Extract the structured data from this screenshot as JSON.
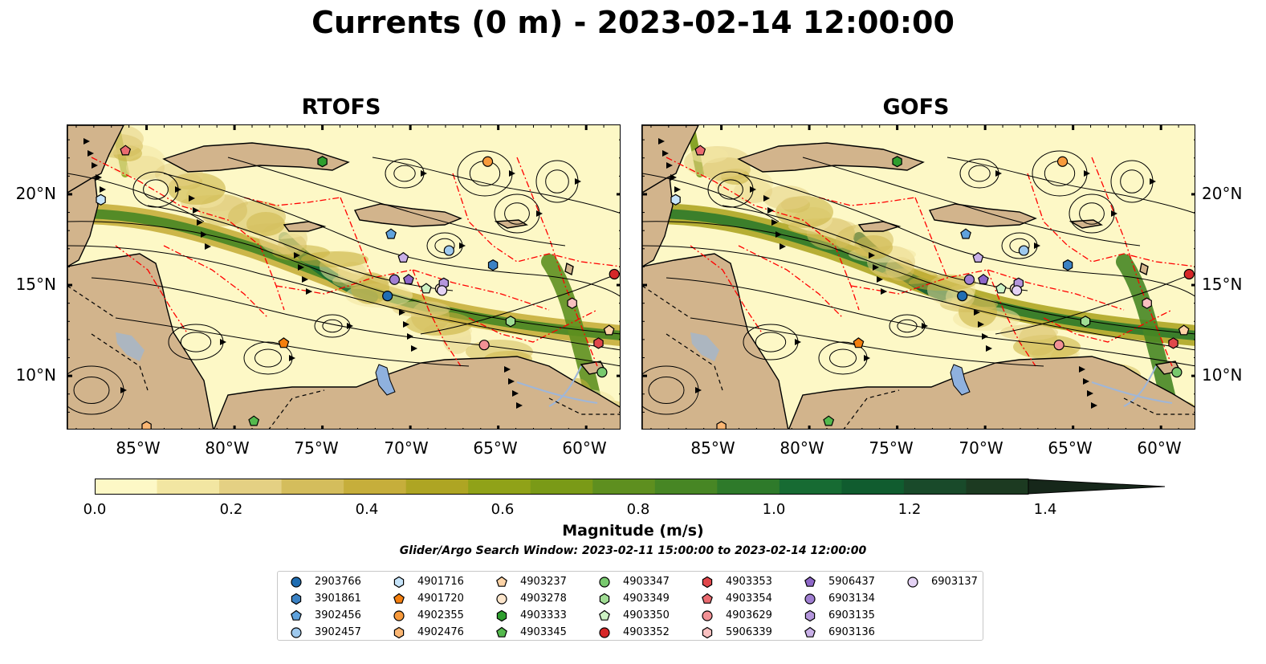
{
  "title": "Currents (0 m) - 2023-02-14 12:00:00",
  "panels": [
    {
      "title": "RTOFS"
    },
    {
      "title": "GOFS"
    }
  ],
  "lat_ticks": [
    "20°N",
    "15°N",
    "10°N"
  ],
  "lon_ticks": [
    "85°W",
    "80°W",
    "75°W",
    "70°W",
    "65°W",
    "60°W"
  ],
  "colorbar": {
    "label": "Magnitude (m/s)",
    "ticks": [
      "0.0",
      "0.2",
      "0.4",
      "0.6",
      "0.8",
      "1.0",
      "1.2",
      "1.4"
    ],
    "min": 0.0,
    "max": 1.5,
    "extend": "max",
    "colors": [
      "#fdf8c6",
      "#f2e6a2",
      "#e4d083",
      "#d4bd5c",
      "#c6ae3b",
      "#aea523",
      "#90a218",
      "#7a9a17",
      "#5e8f1f",
      "#478624",
      "#2e7a2a",
      "#176b33",
      "#105c2f",
      "#194a2a",
      "#1c3a21",
      "#16271a"
    ]
  },
  "search_window": "Glider/Argo Search Window: 2023-02-11 15:00:00 to 2023-02-14 12:00:00",
  "colors": {
    "land": "#d2b48c",
    "lakes": "#8fb1de",
    "rivers": "#9fb6d8",
    "eez_lines": "#ff0000",
    "streamlines": "#000000"
  },
  "legend": [
    {
      "id": "2903766",
      "marker": "circle",
      "color": "#1f6db2"
    },
    {
      "id": "3901861",
      "marker": "hexagon",
      "color": "#3b82c4"
    },
    {
      "id": "3902456",
      "marker": "pentagon",
      "color": "#5fa2dd"
    },
    {
      "id": "3902457",
      "marker": "circle",
      "color": "#9ec9ee"
    },
    {
      "id": "4901716",
      "marker": "hexagon",
      "color": "#c6e4fa"
    },
    {
      "id": "4901720",
      "marker": "pentagon",
      "color": "#f47f0e"
    },
    {
      "id": "4902355",
      "marker": "circle",
      "color": "#f89a3c"
    },
    {
      "id": "4902476",
      "marker": "hexagon",
      "color": "#fbb673"
    },
    {
      "id": "4903237",
      "marker": "pentagon",
      "color": "#fdd3a6"
    },
    {
      "id": "4903278",
      "marker": "circle",
      "color": "#fde6cc"
    },
    {
      "id": "4903333",
      "marker": "hexagon",
      "color": "#2e9e2e"
    },
    {
      "id": "4903345",
      "marker": "pentagon",
      "color": "#54b94d"
    },
    {
      "id": "4903347",
      "marker": "circle",
      "color": "#78c96e"
    },
    {
      "id": "4903349",
      "marker": "hexagon",
      "color": "#a0dc94"
    },
    {
      "id": "4903350",
      "marker": "pentagon",
      "color": "#cdf2c4"
    },
    {
      "id": "4903352",
      "marker": "circle",
      "color": "#d62728"
    },
    {
      "id": "4903353",
      "marker": "hexagon",
      "color": "#e0474b"
    },
    {
      "id": "4903354",
      "marker": "pentagon",
      "color": "#ea6b70"
    },
    {
      "id": "4903629",
      "marker": "circle",
      "color": "#f29195"
    },
    {
      "id": "5906339",
      "marker": "hexagon",
      "color": "#f9c0c0"
    },
    {
      "id": "5906437",
      "marker": "pentagon",
      "color": "#8e67c8"
    },
    {
      "id": "6903134",
      "marker": "circle",
      "color": "#a07fd2"
    },
    {
      "id": "6903135",
      "marker": "hexagon",
      "color": "#b496dc"
    },
    {
      "id": "6903136",
      "marker": "pentagon",
      "color": "#c9b0e8"
    },
    {
      "id": "6903137",
      "marker": "circle",
      "color": "#e4d2f4"
    }
  ],
  "platform_positions": [
    {
      "id": "2903766",
      "lon": -71.3,
      "lat": 14.4
    },
    {
      "id": "3901861",
      "lon": -65.3,
      "lat": 16.1
    },
    {
      "id": "3902456",
      "lon": -71.1,
      "lat": 17.8
    },
    {
      "id": "3902457",
      "lon": -67.8,
      "lat": 16.9
    },
    {
      "id": "4901716",
      "lon": -87.6,
      "lat": 19.7
    },
    {
      "id": "4901720",
      "lon": -77.2,
      "lat": 11.8
    },
    {
      "id": "4902355",
      "lon": -65.6,
      "lat": 21.8
    },
    {
      "id": "4902476",
      "lon": -85.0,
      "lat": 7.2
    },
    {
      "id": "4903237",
      "lon": -58.7,
      "lat": 12.5
    },
    {
      "id": "4903278",
      "lon": -68.3,
      "lat": 14.8
    },
    {
      "id": "4903333",
      "lon": -75.0,
      "lat": 21.8
    },
    {
      "id": "4903345",
      "lon": -78.9,
      "lat": 7.5
    },
    {
      "id": "4903347",
      "lon": -59.1,
      "lat": 10.2
    },
    {
      "id": "4903349",
      "lon": -64.3,
      "lat": 13.0
    },
    {
      "id": "4903350",
      "lon": -69.1,
      "lat": 14.8
    },
    {
      "id": "4903352",
      "lon": -58.4,
      "lat": 15.6
    },
    {
      "id": "4903353",
      "lon": -59.3,
      "lat": 11.8
    },
    {
      "id": "4903354",
      "lon": -86.2,
      "lat": 22.4
    },
    {
      "id": "4903629",
      "lon": -65.8,
      "lat": 11.7
    },
    {
      "id": "5906339",
      "lon": -60.8,
      "lat": 14.0
    },
    {
      "id": "5906437",
      "lon": -70.1,
      "lat": 15.3
    },
    {
      "id": "6903134",
      "lon": -70.9,
      "lat": 15.3
    },
    {
      "id": "6903135",
      "lon": -68.1,
      "lat": 15.1
    },
    {
      "id": "6903136",
      "lon": -70.4,
      "lat": 16.5
    },
    {
      "id": "6903137",
      "lon": -68.2,
      "lat": 14.7
    }
  ]
}
